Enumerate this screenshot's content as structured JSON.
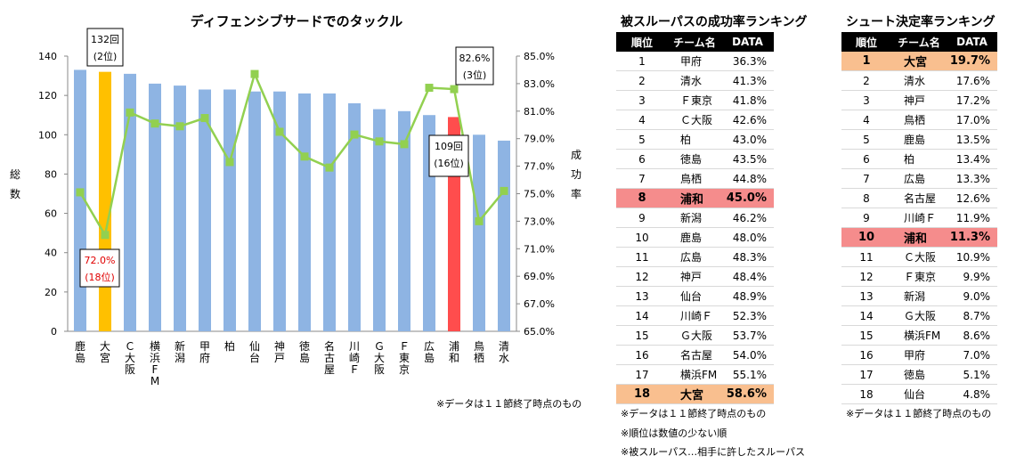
{
  "chart_data": {
    "type": "bar+line",
    "title": "ディフェンシブサードでのタックル",
    "categories": [
      "鹿島",
      "大宮",
      "Ｃ大阪",
      "横浜FM",
      "新潟",
      "甲府",
      "柏",
      "仙台",
      "神戸",
      "徳島",
      "名古屋",
      "川崎Ｆ",
      "Ｇ大阪",
      "Ｆ東京",
      "広島",
      "浦和",
      "鳥栖",
      "清水"
    ],
    "series": [
      {
        "name": "総数",
        "axis": "left",
        "kind": "bar",
        "values": [
          133,
          132,
          131,
          126,
          125,
          123,
          123,
          122,
          122,
          121,
          121,
          116,
          113,
          112,
          110,
          109,
          100,
          97
        ]
      },
      {
        "name": "成功率",
        "axis": "right",
        "kind": "line",
        "values": [
          75.1,
          72.0,
          80.9,
          80.1,
          79.9,
          80.5,
          77.3,
          83.7,
          79.5,
          77.7,
          76.9,
          79.3,
          78.8,
          78.6,
          82.7,
          82.6,
          73.0,
          75.2
        ]
      }
    ],
    "ylabel_left": "総数",
    "ylabel_right": "成功率",
    "ylim_left": [
      0,
      140
    ],
    "ylim_right": [
      65.0,
      85.0
    ],
    "yticks_left": [
      "0",
      "20",
      "40",
      "60",
      "80",
      "100",
      "120",
      "140"
    ],
    "yticks_right": [
      "65.0%",
      "67.0%",
      "69.0%",
      "71.0%",
      "73.0%",
      "75.0%",
      "77.0%",
      "79.0%",
      "81.0%",
      "83.0%",
      "85.0%"
    ],
    "colors": {
      "bar": "#8eb4e3",
      "bar_omiya": "#ffc000",
      "bar_urawa": "#ff4d4d",
      "line": "#92d050",
      "callout_red_text": "#e00000"
    },
    "callouts": [
      {
        "lines": [
          "132回",
          "(2位)"
        ],
        "color": "#000000"
      },
      {
        "lines": [
          "82.6%",
          "(3位)"
        ],
        "color": "#000000"
      },
      {
        "lines": [
          "109回",
          "(16位)"
        ],
        "color": "#000000"
      },
      {
        "lines": [
          "72.0%",
          "(18位)"
        ],
        "color": "#e00000"
      }
    ],
    "note": "※データは１１節終了時点のもの"
  },
  "table_pass": {
    "title": "被スルーパスの成功率ランキング",
    "headers": [
      "順位",
      "チーム名",
      "DATA"
    ],
    "rows": [
      [
        "1",
        "甲府",
        "36.3%"
      ],
      [
        "2",
        "清水",
        "41.3%"
      ],
      [
        "3",
        "Ｆ東京",
        "41.8%"
      ],
      [
        "4",
        "Ｃ大阪",
        "42.6%"
      ],
      [
        "5",
        "柏",
        "43.0%"
      ],
      [
        "6",
        "徳島",
        "43.5%"
      ],
      [
        "7",
        "鳥栖",
        "44.8%"
      ],
      [
        "8",
        "浦和",
        "45.0%"
      ],
      [
        "9",
        "新潟",
        "46.2%"
      ],
      [
        "10",
        "鹿島",
        "48.0%"
      ],
      [
        "11",
        "広島",
        "48.3%"
      ],
      [
        "12",
        "神戸",
        "48.4%"
      ],
      [
        "13",
        "仙台",
        "48.9%"
      ],
      [
        "14",
        "川崎Ｆ",
        "52.3%"
      ],
      [
        "15",
        "Ｇ大阪",
        "53.7%"
      ],
      [
        "16",
        "名古屋",
        "54.0%"
      ],
      [
        "17",
        "横浜FM",
        "55.1%"
      ],
      [
        "18",
        "大宮",
        "58.6%"
      ]
    ],
    "highlight_red_row": 7,
    "highlight_orange_row": 17,
    "notes": [
      "※データは１１節終了時点のもの",
      "※順位は数値の少ない順",
      "※被スルーパス…相手に許したスルーパス"
    ]
  },
  "table_shoot": {
    "title": "シュート決定率ランキング",
    "headers": [
      "順位",
      "チーム名",
      "DATA"
    ],
    "rows": [
      [
        "1",
        "大宮",
        "19.7%"
      ],
      [
        "2",
        "清水",
        "17.6%"
      ],
      [
        "3",
        "神戸",
        "17.2%"
      ],
      [
        "4",
        "鳥栖",
        "17.0%"
      ],
      [
        "5",
        "鹿島",
        "13.5%"
      ],
      [
        "6",
        "柏",
        "13.4%"
      ],
      [
        "7",
        "広島",
        "13.3%"
      ],
      [
        "8",
        "名古屋",
        "12.6%"
      ],
      [
        "9",
        "川崎Ｆ",
        "11.9%"
      ],
      [
        "10",
        "浦和",
        "11.3%"
      ],
      [
        "11",
        "Ｃ大阪",
        "10.9%"
      ],
      [
        "12",
        "Ｆ東京",
        "9.9%"
      ],
      [
        "13",
        "新潟",
        "9.0%"
      ],
      [
        "14",
        "Ｇ大阪",
        "8.7%"
      ],
      [
        "15",
        "横浜FM",
        "8.6%"
      ],
      [
        "16",
        "甲府",
        "7.0%"
      ],
      [
        "17",
        "徳島",
        "5.1%"
      ],
      [
        "18",
        "仙台",
        "4.8%"
      ]
    ],
    "highlight_red_row": 9,
    "highlight_orange_row": 0,
    "notes": [
      "※データは１１節終了時点のもの"
    ]
  }
}
